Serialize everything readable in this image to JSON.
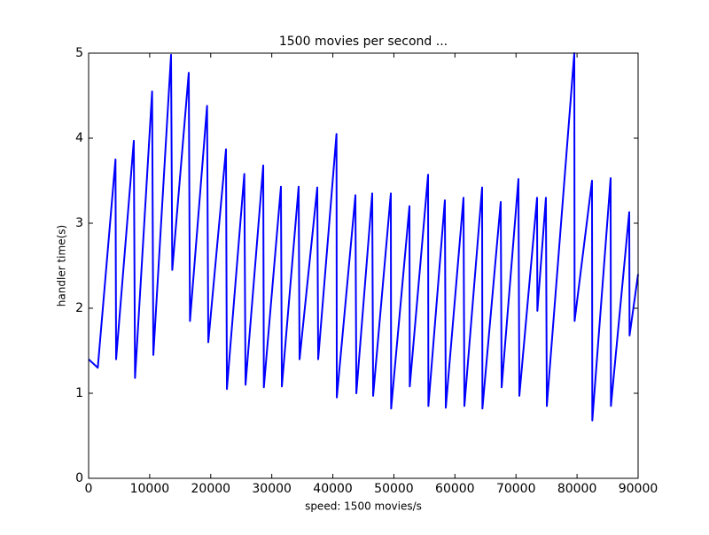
{
  "chart_data": {
    "type": "line",
    "title": "1500 movies per second ...",
    "x_label": "speed: 1500 movies/s",
    "y_label": "handler time(s)",
    "series": [
      {
        "name": "handler time",
        "color": "#0000ff",
        "x": [
          0,
          1500,
          4400,
          4500,
          7400,
          7600,
          10400,
          10600,
          13500,
          13700,
          16400,
          16600,
          19400,
          19600,
          22500,
          22650,
          25500,
          25700,
          28600,
          28700,
          31500,
          31650,
          34400,
          34550,
          37450,
          37600,
          40600,
          40650,
          43700,
          43850,
          46450,
          46600,
          49500,
          49550,
          52550,
          52600,
          55600,
          55650,
          58350,
          58500,
          61400,
          61550,
          64450,
          64500,
          67500,
          67650,
          70400,
          70550,
          73450,
          73500,
          74900,
          75050,
          79550,
          79600,
          82450,
          82500,
          85500,
          85550,
          88550,
          88600,
          90000
        ],
        "values": [
          1.4,
          1.3,
          3.75,
          1.4,
          3.97,
          1.18,
          4.55,
          1.45,
          4.98,
          2.45,
          4.77,
          1.85,
          4.38,
          1.6,
          3.87,
          1.05,
          3.58,
          1.1,
          3.68,
          1.07,
          3.43,
          1.08,
          3.43,
          1.4,
          3.42,
          1.4,
          4.05,
          0.95,
          3.33,
          1.0,
          3.35,
          0.97,
          3.35,
          0.82,
          3.2,
          1.08,
          3.57,
          0.85,
          3.27,
          0.83,
          3.3,
          0.85,
          3.42,
          0.82,
          3.25,
          1.07,
          3.52,
          0.97,
          3.3,
          1.97,
          3.3,
          0.85,
          5.0,
          1.85,
          3.5,
          0.68,
          3.53,
          0.85,
          3.13,
          1.68,
          2.4
        ]
      }
    ],
    "xlim": [
      0,
      90000
    ],
    "ylim": [
      0,
      5
    ],
    "xticks": [
      0,
      10000,
      20000,
      30000,
      40000,
      50000,
      60000,
      70000,
      80000,
      90000
    ],
    "yticks": [
      0,
      1,
      2,
      3,
      4,
      5
    ],
    "grid": false
  }
}
